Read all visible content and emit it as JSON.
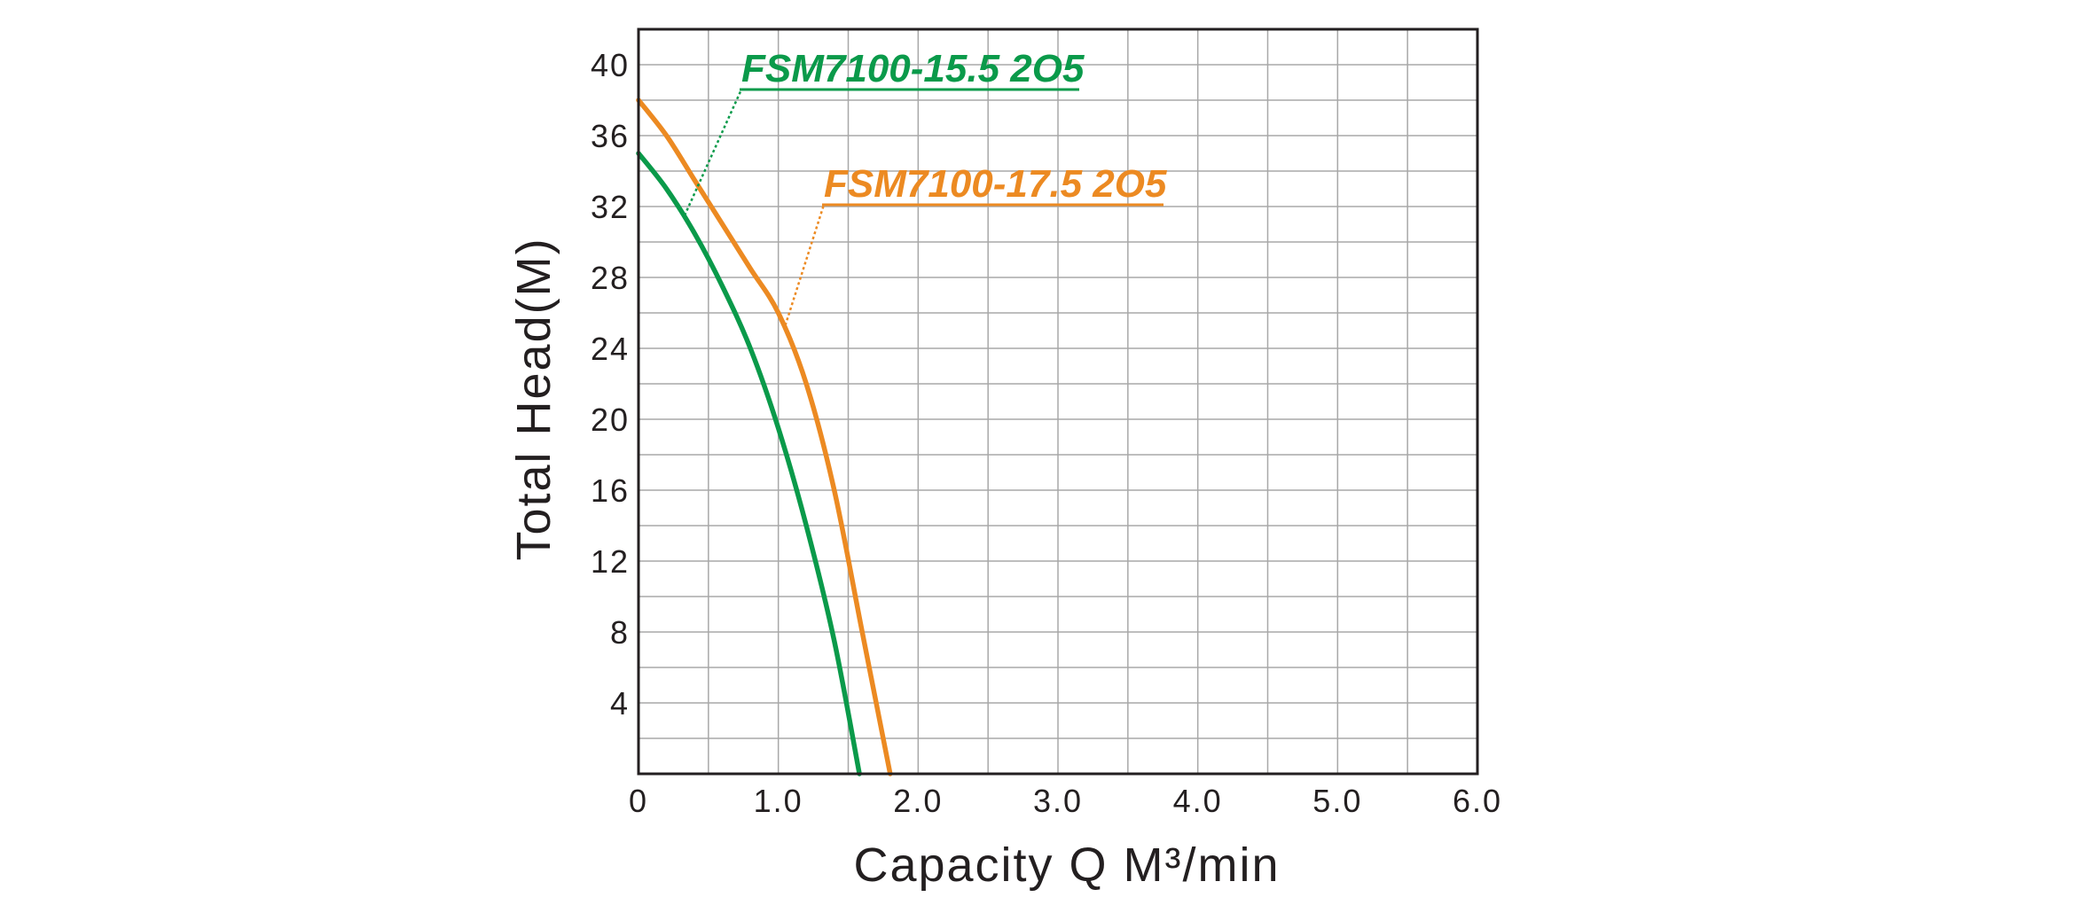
{
  "chart_data": {
    "type": "line",
    "xlabel": "Capacity    Q   M³/min",
    "ylabel": "Total  Head(M)",
    "xlim": [
      0,
      6.0
    ],
    "ylim": [
      0,
      42
    ],
    "x_ticks": [
      {
        "value": 0,
        "label": "0"
      },
      {
        "value": 1,
        "label": "1.0"
      },
      {
        "value": 2,
        "label": "2.0"
      },
      {
        "value": 3,
        "label": "3.0"
      },
      {
        "value": 4,
        "label": "4.0"
      },
      {
        "value": 5,
        "label": "5.0"
      },
      {
        "value": 6,
        "label": "6.0"
      }
    ],
    "y_ticks": [
      {
        "value": 4,
        "label": "4"
      },
      {
        "value": 8,
        "label": "8"
      },
      {
        "value": 12,
        "label": "12"
      },
      {
        "value": 16,
        "label": "16"
      },
      {
        "value": 20,
        "label": "20"
      },
      {
        "value": 24,
        "label": "24"
      },
      {
        "value": 28,
        "label": "28"
      },
      {
        "value": 32,
        "label": "32"
      },
      {
        "value": 36,
        "label": "36"
      },
      {
        "value": 40,
        "label": "40"
      }
    ],
    "grid": {
      "x_step": 0.5,
      "y_step": 2
    },
    "series": [
      {
        "name": "FSM7100-15.5 2O5",
        "color": "#0a9a4a",
        "points": [
          [
            0,
            35
          ],
          [
            0.2,
            33
          ],
          [
            0.4,
            30.5
          ],
          [
            0.6,
            27.5
          ],
          [
            0.8,
            24
          ],
          [
            1.0,
            19.5
          ],
          [
            1.2,
            14
          ],
          [
            1.4,
            7.5
          ],
          [
            1.58,
            0
          ]
        ],
        "label_anchor": [
          0.33,
          31.5
        ]
      },
      {
        "name": "FSM7100-17.5 2O5",
        "color": "#ec8a22",
        "points": [
          [
            0,
            38
          ],
          [
            0.2,
            36
          ],
          [
            0.4,
            33.5
          ],
          [
            0.6,
            31
          ],
          [
            0.8,
            28.5
          ],
          [
            1.0,
            26
          ],
          [
            1.2,
            22
          ],
          [
            1.4,
            16
          ],
          [
            1.6,
            8
          ],
          [
            1.8,
            0
          ]
        ],
        "label_anchor": [
          1.05,
          25.3
        ]
      }
    ]
  }
}
